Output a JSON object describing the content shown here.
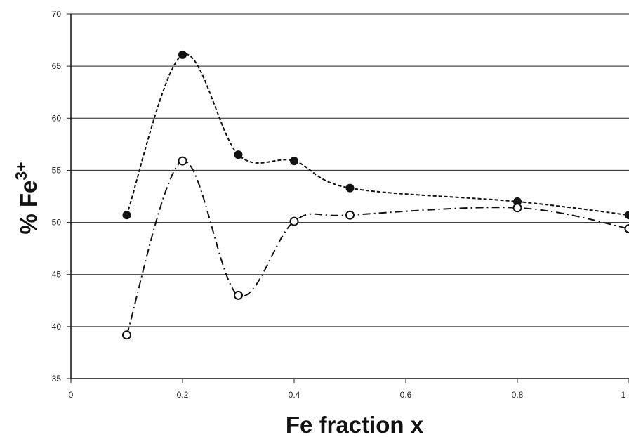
{
  "chart_data": {
    "type": "line",
    "title": "",
    "xlabel": "Fe fraction x",
    "ylabel_main": "% Fe",
    "ylabel_sup": "3+",
    "xlim": [
      0,
      1
    ],
    "ylim": [
      35,
      70
    ],
    "xticks": [
      0,
      0.2,
      0.4,
      0.6,
      0.8,
      1
    ],
    "xtick_labels": [
      "0",
      "0.2",
      "0.4",
      "0.6",
      "0.8",
      "1"
    ],
    "yticks": [
      35,
      40,
      45,
      50,
      55,
      60,
      65,
      70
    ],
    "ytick_labels": [
      "35",
      "40",
      "45",
      "50",
      "55",
      "60",
      "65",
      "70"
    ],
    "grid": "horizontal",
    "series": [
      {
        "marker": "filled-circle",
        "line_style": "dashed",
        "color": "#111111",
        "x": [
          0.1,
          0.2,
          0.3,
          0.4,
          0.5,
          0.8,
          1.0
        ],
        "y": [
          50.7,
          66.1,
          56.5,
          55.9,
          53.3,
          52.0,
          50.7
        ]
      },
      {
        "marker": "open-circle",
        "line_style": "dash-dot",
        "color": "#111111",
        "x": [
          0.1,
          0.2,
          0.3,
          0.4,
          0.5,
          0.8,
          1.0
        ],
        "y": [
          39.2,
          55.9,
          43.0,
          50.1,
          50.7,
          51.4,
          49.4
        ]
      }
    ]
  }
}
